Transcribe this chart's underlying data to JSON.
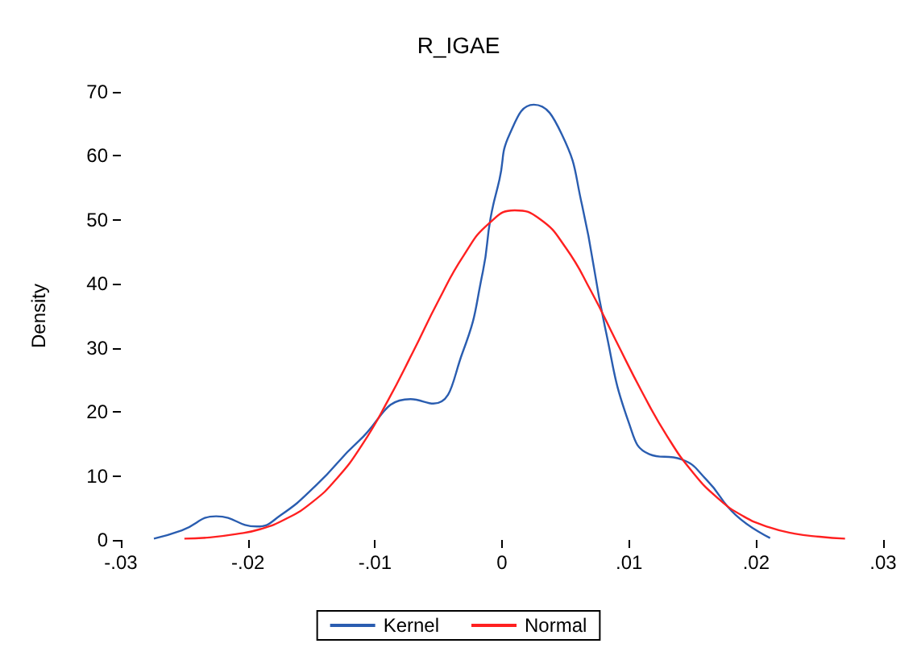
{
  "chart_data": {
    "type": "line",
    "title": "R_IGAE",
    "ylabel": "Density",
    "xlim": [
      -0.03,
      0.03
    ],
    "xticks": [
      {
        "value": -0.03,
        "label": "-.03"
      },
      {
        "value": -0.02,
        "label": "-.02"
      },
      {
        "value": -0.01,
        "label": "-.01"
      },
      0,
      {
        "value": 0.01,
        "label": ".01"
      },
      {
        "value": 0.02,
        "label": ".02"
      },
      {
        "value": 0.03,
        "label": ".03"
      }
    ],
    "ylim": [
      0,
      70
    ],
    "yticks": [
      0,
      10,
      20,
      30,
      40,
      50,
      60,
      70
    ],
    "grid": false,
    "legend": "bottom",
    "marker": "none",
    "line_style": "solid",
    "series": [
      {
        "name": "Kernel",
        "color": "#2a5db0",
        "x": [
          -0.0274,
          -0.0252,
          -0.0225,
          -0.0193,
          -0.0174,
          -0.0146,
          -0.0113,
          -0.0072,
          -0.0054,
          -0.0031,
          -0.0015,
          -0.0009,
          -0.0002,
          0.0006,
          0.0025,
          0.0047,
          0.0063,
          0.0081,
          0.01,
          0.0116,
          0.0141,
          0.0161,
          0.0184,
          0.0211
        ],
        "values": [
          0.2,
          1.5,
          3.7,
          2.1,
          3.9,
          8.6,
          15.4,
          22.0,
          21.3,
          29.3,
          42.0,
          50.3,
          56.3,
          63.4,
          68.0,
          63.4,
          52.3,
          33.3,
          18.2,
          13.4,
          12.6,
          9.4,
          3.9,
          0.3
        ]
      },
      {
        "name": "Normal",
        "color": "#ff2020",
        "x": [
          -0.025,
          -0.023,
          -0.021,
          -0.019,
          -0.017,
          -0.015,
          -0.013,
          -0.011,
          -0.009,
          -0.007,
          -0.005,
          -0.003,
          -0.001,
          0.001,
          0.003,
          0.005,
          0.007,
          0.009,
          0.011,
          0.013,
          0.015,
          0.017,
          0.019,
          0.021,
          0.023,
          0.025,
          0.027
        ],
        "values": [
          0.2,
          0.4,
          0.9,
          1.7,
          3.3,
          5.8,
          9.6,
          14.9,
          21.7,
          29.4,
          37.4,
          44.5,
          49.5,
          51.5,
          50.1,
          45.7,
          38.9,
          31.0,
          23.2,
          16.2,
          10.6,
          6.5,
          3.7,
          2.0,
          1.0,
          0.5,
          0.2
        ]
      }
    ]
  }
}
